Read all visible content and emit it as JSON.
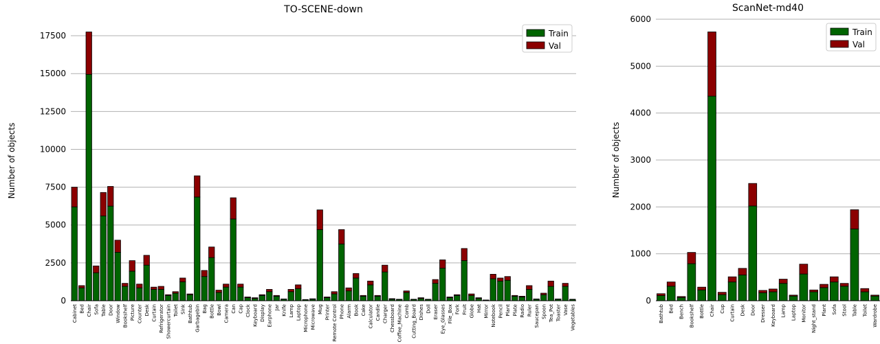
{
  "colors": {
    "train": "#006400",
    "val": "#8b0000",
    "grid": "#b0b0b0",
    "edge": "#000000"
  },
  "chart_data": [
    {
      "type": "bar",
      "stacked": true,
      "title": "TO-SCENE-down",
      "ylabel": "Number of objects",
      "xlabel": "",
      "ylim": [
        0,
        18500
      ],
      "yticks": [
        0,
        2500,
        5000,
        7500,
        10000,
        12500,
        15000,
        17500
      ],
      "grid": "y",
      "legend": "top-right",
      "categories": [
        "Cabinet",
        "Bed",
        "Chair",
        "Sofa",
        "Table",
        "Door",
        "Window",
        "Bookshelf",
        "Picture",
        "Counter",
        "Desk",
        "Curtain",
        "Refrigerator",
        "Showercurtain",
        "Toilet",
        "Sink",
        "Bathtub",
        "Garbagebin",
        "Bag",
        "Bottle",
        "Bowl",
        "Camera",
        "Can",
        "Cap",
        "Clock",
        "Keyboard",
        "Display",
        "Earphone",
        "Jar",
        "Knife",
        "Lamp",
        "Laptop",
        "Microphone",
        "Microwave",
        "Mug",
        "Printer",
        "Remote Control",
        "Phone",
        "Alarm",
        "Book",
        "Cake",
        "Calculator",
        "Candle",
        "Charger",
        "Chessboard",
        "Coffee_Machine",
        "Comb",
        "Cutting_Board",
        "Dishes",
        "Doll",
        "Eraser",
        "Eye_Glasses",
        "File_Box",
        "Fork",
        "Fruit",
        "Globe",
        "Hat",
        "Mirror",
        "Notebook",
        "Pencil",
        "Plant",
        "Plate",
        "Radio",
        "Ruler",
        "Saucepan",
        "Spoon",
        "Tea_Pot",
        "Toaster",
        "Vase",
        "Vegetables"
      ],
      "series": [
        {
          "name": "Train",
          "values": [
            6200,
            850,
            14950,
            1850,
            5600,
            6250,
            3200,
            950,
            1950,
            850,
            2350,
            750,
            750,
            350,
            500,
            1250,
            400,
            6850,
            1600,
            2850,
            550,
            900,
            5400,
            900,
            200,
            150,
            350,
            600,
            300,
            100,
            600,
            800,
            60,
            100,
            4700,
            200,
            450,
            3750,
            650,
            1500,
            300,
            1050,
            300,
            1900,
            100,
            80,
            550,
            80,
            150,
            80,
            1150,
            2150,
            200,
            350,
            2650,
            350,
            150,
            40,
            1450,
            1300,
            1350,
            300,
            250,
            750,
            100,
            400,
            950,
            100,
            950,
            80
          ]
        },
        {
          "name": "Val",
          "values": [
            1300,
            150,
            2800,
            450,
            1550,
            1300,
            800,
            200,
            700,
            250,
            650,
            150,
            200,
            50,
            100,
            250,
            50,
            1400,
            400,
            700,
            150,
            200,
            1400,
            200,
            50,
            50,
            50,
            150,
            50,
            20,
            150,
            250,
            20,
            30,
            1300,
            50,
            150,
            950,
            200,
            300,
            50,
            250,
            50,
            450,
            40,
            20,
            100,
            20,
            50,
            20,
            250,
            550,
            50,
            50,
            800,
            100,
            50,
            10,
            300,
            200,
            250,
            50,
            50,
            250,
            20,
            100,
            350,
            20,
            200,
            20
          ]
        }
      ]
    },
    {
      "type": "bar",
      "stacked": true,
      "title": "ScanNet-md40",
      "ylabel": "Number of objects",
      "xlabel": "",
      "ylim": [
        0,
        6000
      ],
      "yticks": [
        0,
        1000,
        2000,
        3000,
        4000,
        5000,
        6000
      ],
      "grid": "y",
      "legend": "top-right",
      "categories": [
        "Bathtub",
        "Bed",
        "Bench",
        "Bookshelf",
        "Bottle",
        "Chair",
        "Cup",
        "Curtain",
        "Desk",
        "Door",
        "Dresser",
        "Keyboard",
        "Lamp",
        "Laptop",
        "Monitor",
        "Night_stand",
        "Plant",
        "Sofa",
        "Stool",
        "Table",
        "Toilet",
        "Wardrobe"
      ],
      "series": [
        {
          "name": "Train",
          "values": [
            110,
            310,
            70,
            790,
            230,
            4360,
            130,
            400,
            550,
            2020,
            170,
            190,
            370,
            100,
            570,
            190,
            280,
            400,
            310,
            1530,
            190,
            100
          ]
        },
        {
          "name": "Val",
          "values": [
            40,
            90,
            20,
            240,
            60,
            1370,
            50,
            110,
            140,
            480,
            50,
            60,
            90,
            20,
            210,
            40,
            70,
            110,
            60,
            410,
            70,
            20
          ]
        }
      ]
    }
  ]
}
